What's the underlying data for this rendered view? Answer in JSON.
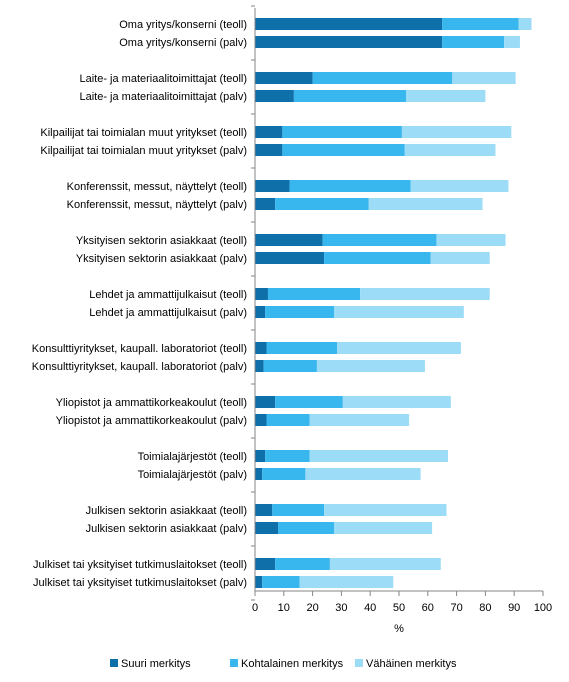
{
  "chart_data": {
    "type": "bar",
    "orientation": "horizontal",
    "stacked": true,
    "categories": [
      "Oma yritys/konserni (teoll)",
      "Oma yritys/konserni (palv)",
      "Laite- ja materiaalitoimittajat (teoll)",
      "Laite- ja materiaalitoimittajat (palv)",
      "Kilpailijat tai toimialan muut yritykset (teoll)",
      "Kilpailijat tai toimialan muut yritykset (palv)",
      "Konferenssit, messut, näyttelyt (teoll)",
      "Konferenssit, messut, näyttelyt (palv)",
      "Yksityisen sektorin asiakkaat (teoll)",
      "Yksityisen sektorin asiakkaat (palv)",
      "Lehdet ja ammattijulkaisut (teoll)",
      "Lehdet ja ammattijulkaisut (palv)",
      "Konsulttiyritykset, kaupall. laboratoriot (teoll)",
      "Konsulttiyritykset, kaupall. laboratoriot (palv)",
      "Yliopistot ja ammattikorkeakoulut (teoll)",
      "Yliopistot ja ammattikorkeakoulut (palv)",
      "Toimialajärjestöt (teoll)",
      "Toimialajärjestöt (palv)",
      "Julkisen sektorin asiakkaat (teoll)",
      "Julkisen sektorin asiakkaat (palv)",
      "Julkiset tai yksityiset tutkimuslaitokset (teoll)",
      "Julkiset tai yksityiset tutkimuslaitokset (palv)"
    ],
    "series": [
      {
        "name": "Suuri merkitys",
        "color": "#0f6fa8",
        "values": [
          65,
          65,
          20,
          13.5,
          9.5,
          9.5,
          12,
          7,
          23.5,
          24,
          4.5,
          3.5,
          4,
          3,
          7,
          4,
          3.5,
          2.5,
          6,
          8,
          7,
          2.5
        ]
      },
      {
        "name": "Kohtalainen merkitys",
        "color": "#38b6ee",
        "values": [
          26.5,
          21.5,
          48.5,
          39,
          41.5,
          42.5,
          42,
          32.5,
          39.5,
          37,
          32,
          24,
          24.5,
          18.5,
          23.5,
          15,
          15.5,
          15,
          18,
          19.5,
          19,
          13
        ]
      },
      {
        "name": "Vähäinen merkitys",
        "color": "#9cdcf6",
        "values": [
          4.5,
          5.5,
          22,
          27.5,
          38,
          31.5,
          34,
          39.5,
          24,
          20.5,
          45,
          45,
          43,
          37.5,
          37.5,
          34.5,
          48,
          40,
          42.5,
          34,
          38.5,
          32.5
        ]
      }
    ],
    "xlim": [
      0,
      100
    ],
    "xticks": [
      "0",
      "10",
      "20",
      "30",
      "40",
      "50",
      "60",
      "70",
      "80",
      "90",
      "100"
    ],
    "xlabel": "%",
    "ylabel": "",
    "grid": false,
    "legend_position": "bottom"
  }
}
